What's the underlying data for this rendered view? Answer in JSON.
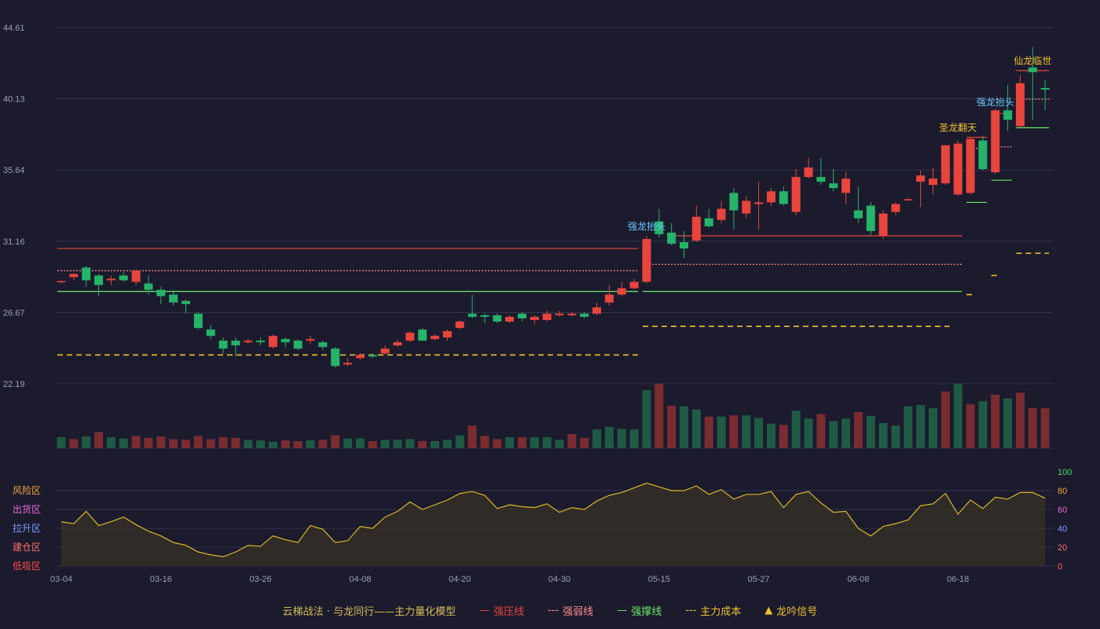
{
  "colors": {
    "background": "#1b1b2d",
    "up": "#e8453c",
    "down": "#26b36a",
    "up_volume": "#7a2c31",
    "down_volume": "#1f5a45",
    "resistance": "#e8453c",
    "weak": "#ff8a8a",
    "support": "#6aea6a",
    "cost": "#f2c12e",
    "signal_gold": "#f2c12e",
    "signal_blue": "#6cc8ff",
    "oscillator_line": "#d9b72a",
    "grid": "#33354a",
    "axis_text": "#9aa0b4"
  },
  "legend": {
    "title": "云梯战法 · 与龙同行——主力量化模型",
    "items": [
      {
        "symbol": "—",
        "label": "强压线",
        "color": "#e8453c"
      },
      {
        "symbol": "---",
        "label": "强弱线",
        "color": "#ff8a8a"
      },
      {
        "symbol": "—",
        "label": "强撑线",
        "color": "#6aea6a"
      },
      {
        "symbol": "---",
        "label": "主力成本",
        "color": "#f2c12e"
      },
      {
        "symbol": "▲",
        "label": "龙吟信号",
        "color": "#f2c12e"
      }
    ]
  },
  "chart_data": {
    "type": "candlestick",
    "y_ticks": [
      "44.61",
      "40.13",
      "35.64",
      "31.16",
      "26.67",
      "22.19"
    ],
    "y_range": [
      22.19,
      44.61
    ],
    "x_tick_labels": [
      {
        "i": 0,
        "label": "03-04"
      },
      {
        "i": 8,
        "label": "03-16"
      },
      {
        "i": 16,
        "label": "03-26"
      },
      {
        "i": 24,
        "label": "04-08"
      },
      {
        "i": 32,
        "label": "04-20"
      },
      {
        "i": 40,
        "label": "04-30"
      },
      {
        "i": 48,
        "label": "05-15"
      },
      {
        "i": 56,
        "label": "05-27"
      },
      {
        "i": 64,
        "label": "06-08"
      },
      {
        "i": 72,
        "label": "06-18"
      }
    ],
    "candles": [
      [
        28.6,
        28.65,
        28.5,
        28.7
      ],
      [
        28.9,
        29.1,
        28.7,
        29.15
      ],
      [
        29.5,
        28.7,
        28.3,
        29.6
      ],
      [
        29.0,
        28.4,
        27.7,
        29.1
      ],
      [
        28.7,
        28.8,
        28.4,
        29.0
      ],
      [
        29.0,
        28.7,
        28.6,
        29.2
      ],
      [
        28.6,
        29.3,
        28.4,
        29.4
      ],
      [
        28.5,
        28.1,
        27.8,
        29.0
      ],
      [
        28.1,
        27.7,
        27.2,
        28.3
      ],
      [
        27.8,
        27.3,
        27.1,
        28.1
      ],
      [
        27.4,
        27.2,
        26.6,
        27.5
      ],
      [
        26.6,
        25.7,
        25.6,
        26.7
      ],
      [
        25.6,
        25.2,
        25.0,
        25.9
      ],
      [
        24.9,
        24.4,
        24.1,
        25.1
      ],
      [
        24.9,
        24.6,
        23.9,
        25.1
      ],
      [
        24.8,
        24.9,
        24.7,
        25.0
      ],
      [
        24.9,
        24.8,
        24.6,
        25.1
      ],
      [
        24.5,
        25.2,
        24.4,
        25.3
      ],
      [
        25.0,
        24.8,
        24.5,
        25.1
      ],
      [
        24.9,
        24.4,
        24.3,
        25.0
      ],
      [
        24.9,
        25.0,
        24.7,
        25.2
      ],
      [
        24.8,
        24.5,
        24.3,
        24.9
      ],
      [
        24.4,
        23.3,
        23.2,
        24.5
      ],
      [
        23.4,
        23.5,
        23.3,
        23.8
      ],
      [
        23.8,
        24.0,
        23.7,
        24.1
      ],
      [
        24.0,
        23.9,
        23.8,
        24.1
      ],
      [
        24.1,
        24.4,
        24.0,
        24.6
      ],
      [
        24.6,
        24.8,
        24.5,
        25.0
      ],
      [
        24.9,
        25.4,
        24.8,
        25.5
      ],
      [
        25.6,
        24.9,
        24.9,
        25.7
      ],
      [
        25.0,
        25.2,
        24.9,
        25.3
      ],
      [
        25.1,
        25.5,
        24.9,
        25.6
      ],
      [
        25.7,
        26.1,
        25.6,
        26.2
      ],
      [
        26.6,
        26.4,
        26.3,
        27.8
      ],
      [
        26.5,
        26.4,
        26.0,
        26.6
      ],
      [
        26.5,
        26.1,
        26.0,
        26.6
      ],
      [
        26.1,
        26.4,
        26.0,
        26.5
      ],
      [
        26.6,
        26.3,
        26.1,
        26.7
      ],
      [
        26.2,
        26.4,
        25.9,
        26.5
      ],
      [
        26.2,
        26.6,
        26.1,
        26.8
      ],
      [
        26.5,
        26.6,
        26.4,
        26.8
      ],
      [
        26.5,
        26.6,
        26.4,
        26.7
      ],
      [
        26.6,
        26.4,
        26.3,
        26.7
      ],
      [
        26.6,
        27.0,
        26.5,
        27.3
      ],
      [
        27.3,
        27.8,
        27.1,
        28.4
      ],
      [
        27.8,
        28.2,
        27.7,
        28.6
      ],
      [
        28.2,
        28.6,
        28.1,
        28.8
      ],
      [
        28.6,
        31.3,
        28.5,
        31.5
      ],
      [
        32.4,
        31.6,
        31.4,
        33.2
      ],
      [
        31.7,
        31.0,
        30.9,
        32.3
      ],
      [
        31.1,
        30.7,
        30.1,
        31.8
      ],
      [
        31.2,
        32.7,
        31.1,
        33.4
      ],
      [
        32.6,
        32.1,
        32.0,
        33.2
      ],
      [
        32.5,
        33.2,
        32.3,
        33.7
      ],
      [
        34.2,
        33.1,
        31.9,
        34.5
      ],
      [
        32.9,
        33.7,
        32.6,
        34.0
      ],
      [
        33.5,
        33.6,
        31.9,
        34.9
      ],
      [
        33.6,
        34.3,
        33.4,
        34.5
      ],
      [
        34.3,
        33.5,
        33.4,
        34.6
      ],
      [
        33.0,
        35.2,
        32.8,
        35.7
      ],
      [
        35.2,
        35.8,
        35.1,
        36.4
      ],
      [
        35.2,
        34.9,
        34.7,
        36.4
      ],
      [
        34.8,
        34.5,
        34.3,
        35.7
      ],
      [
        34.2,
        35.1,
        33.5,
        35.5
      ],
      [
        33.1,
        32.6,
        32.3,
        34.6
      ],
      [
        33.4,
        31.8,
        31.5,
        33.6
      ],
      [
        31.5,
        32.9,
        31.3,
        33.1
      ],
      [
        33.0,
        33.5,
        32.8,
        33.6
      ],
      [
        33.8,
        33.8,
        33.7,
        33.9
      ],
      [
        34.9,
        35.3,
        33.3,
        35.6
      ],
      [
        34.7,
        35.1,
        34.1,
        35.8
      ],
      [
        34.8,
        37.2,
        34.7,
        37.2
      ],
      [
        34.1,
        37.3,
        34.0,
        37.5
      ],
      [
        34.2,
        37.6,
        34.1,
        37.7
      ],
      [
        37.5,
        35.7,
        35.6,
        37.8
      ],
      [
        35.5,
        39.4,
        35.4,
        39.5
      ],
      [
        39.4,
        38.8,
        38.1,
        41.0
      ],
      [
        38.4,
        41.1,
        38.3,
        41.6
      ],
      [
        42.1,
        41.8,
        38.8,
        43.4
      ],
      [
        40.8,
        40.7,
        39.4,
        41.3
      ]
    ],
    "volume": [
      [
        0,
        0.17
      ],
      [
        1,
        0.14
      ],
      [
        0,
        0.18
      ],
      [
        1,
        0.25
      ],
      [
        0,
        0.17
      ],
      [
        0,
        0.15
      ],
      [
        1,
        0.19
      ],
      [
        1,
        0.16
      ],
      [
        1,
        0.18
      ],
      [
        1,
        0.14
      ],
      [
        1,
        0.13
      ],
      [
        1,
        0.19
      ],
      [
        1,
        0.14
      ],
      [
        1,
        0.17
      ],
      [
        1,
        0.16
      ],
      [
        0,
        0.13
      ],
      [
        0,
        0.12
      ],
      [
        0,
        0.1
      ],
      [
        1,
        0.12
      ],
      [
        1,
        0.11
      ],
      [
        0,
        0.12
      ],
      [
        1,
        0.13
      ],
      [
        1,
        0.2
      ],
      [
        0,
        0.15
      ],
      [
        0,
        0.15
      ],
      [
        1,
        0.11
      ],
      [
        0,
        0.13
      ],
      [
        0,
        0.13
      ],
      [
        0,
        0.14
      ],
      [
        1,
        0.11
      ],
      [
        0,
        0.11
      ],
      [
        0,
        0.13
      ],
      [
        0,
        0.2
      ],
      [
        1,
        0.35
      ],
      [
        1,
        0.19
      ],
      [
        1,
        0.14
      ],
      [
        0,
        0.17
      ],
      [
        1,
        0.17
      ],
      [
        0,
        0.17
      ],
      [
        0,
        0.17
      ],
      [
        0,
        0.13
      ],
      [
        1,
        0.22
      ],
      [
        1,
        0.16
      ],
      [
        0,
        0.29
      ],
      [
        0,
        0.33
      ],
      [
        0,
        0.3
      ],
      [
        0,
        0.29
      ],
      [
        0,
        0.9
      ],
      [
        1,
        1.0
      ],
      [
        1,
        0.66
      ],
      [
        0,
        0.65
      ],
      [
        0,
        0.6
      ],
      [
        1,
        0.49
      ],
      [
        0,
        0.49
      ],
      [
        1,
        0.51
      ],
      [
        0,
        0.51
      ],
      [
        0,
        0.47
      ],
      [
        0,
        0.38
      ],
      [
        1,
        0.36
      ],
      [
        0,
        0.58
      ],
      [
        0,
        0.46
      ],
      [
        1,
        0.53
      ],
      [
        0,
        0.42
      ],
      [
        0,
        0.46
      ],
      [
        1,
        0.56
      ],
      [
        0,
        0.5
      ],
      [
        0,
        0.39
      ],
      [
        0,
        0.35
      ],
      [
        0,
        0.65
      ],
      [
        0,
        0.67
      ],
      [
        0,
        0.62
      ],
      [
        1,
        0.88
      ],
      [
        0,
        1.0
      ],
      [
        1,
        0.68
      ],
      [
        0,
        0.73
      ],
      [
        1,
        0.83
      ],
      [
        0,
        0.77
      ],
      [
        1,
        0.86
      ],
      [
        1,
        0.62
      ],
      [
        1,
        0.62
      ]
    ],
    "oscillator": [
      47,
      45,
      58,
      43,
      47,
      52,
      44,
      37,
      32,
      25,
      22,
      15,
      12,
      10,
      15,
      22,
      21,
      32,
      28,
      25,
      43,
      39,
      25,
      27,
      42,
      40,
      52,
      58,
      68,
      60,
      65,
      70,
      77,
      79,
      75,
      61,
      65,
      63,
      62,
      66,
      57,
      62,
      60,
      69,
      75,
      78,
      83,
      88,
      84,
      80,
      80,
      85,
      76,
      81,
      71,
      76,
      76,
      79,
      62,
      76,
      79,
      67,
      57,
      58,
      40,
      32,
      42,
      45,
      49,
      64,
      66,
      77,
      55,
      70,
      61,
      73,
      71,
      78,
      78,
      72
    ],
    "oscillator_ticks": [
      0,
      20,
      40,
      60,
      80,
      100
    ],
    "zones": [
      {
        "label": "风险区",
        "color": "#f4a53a"
      },
      {
        "label": "出货区",
        "color": "#e86ad8"
      },
      {
        "label": "拉升区",
        "color": "#7b9cff"
      },
      {
        "label": "建仓区",
        "color": "#ff6b6b"
      },
      {
        "label": "低吸区",
        "color": "#ff4c4c"
      }
    ],
    "levels": [
      {
        "kind": "resistance",
        "value": 30.7,
        "from": 0,
        "to": 46
      },
      {
        "kind": "weak",
        "value": 29.3,
        "from": 0,
        "to": 46
      },
      {
        "kind": "support",
        "value": 28.0,
        "from": 0,
        "to": 46
      },
      {
        "kind": "cost",
        "value": 24.0,
        "from": 0,
        "to": 46
      },
      {
        "kind": "resistance",
        "value": 31.5,
        "from": 49,
        "to": 72
      },
      {
        "kind": "weak",
        "value": 29.7,
        "from": 47,
        "to": 72
      },
      {
        "kind": "support",
        "value": 28.0,
        "from": 47,
        "to": 72
      },
      {
        "kind": "cost",
        "value": 25.8,
        "from": 47,
        "to": 71
      },
      {
        "kind": "cost",
        "value": 27.8,
        "from": 73,
        "to": 73
      },
      {
        "kind": "support",
        "value": 33.6,
        "from": 73,
        "to": 74
      },
      {
        "kind": "weak",
        "value": 37.0,
        "from": 73,
        "to": 74
      },
      {
        "kind": "resistance",
        "value": 37.7,
        "from": 73,
        "to": 74
      },
      {
        "kind": "cost",
        "value": 29.0,
        "from": 75,
        "to": 75
      },
      {
        "kind": "support",
        "value": 35.0,
        "from": 75,
        "to": 76
      },
      {
        "kind": "weak",
        "value": 37.1,
        "from": 75,
        "to": 76
      },
      {
        "kind": "resistance",
        "value": 39.2,
        "from": 75,
        "to": 76
      },
      {
        "kind": "cost",
        "value": 30.4,
        "from": 77,
        "to": 79
      },
      {
        "kind": "support",
        "value": 38.3,
        "from": 77,
        "to": 79
      },
      {
        "kind": "weak",
        "value": 40.1,
        "from": 77,
        "to": 79
      },
      {
        "kind": "resistance",
        "value": 41.9,
        "from": 77,
        "to": 79
      }
    ],
    "signals": [
      {
        "i": 47,
        "value": 31.9,
        "text": "强龙抬头",
        "color": "#6cc8ff"
      },
      {
        "i": 72,
        "value": 38.1,
        "text": "圣龙翻天",
        "color": "#f2c12e"
      },
      {
        "i": 75,
        "value": 39.7,
        "text": "强龙抬头",
        "color": "#6cc8ff"
      },
      {
        "i": 78,
        "value": 42.3,
        "text": "仙龙临世",
        "color": "#f2c12e"
      }
    ]
  }
}
